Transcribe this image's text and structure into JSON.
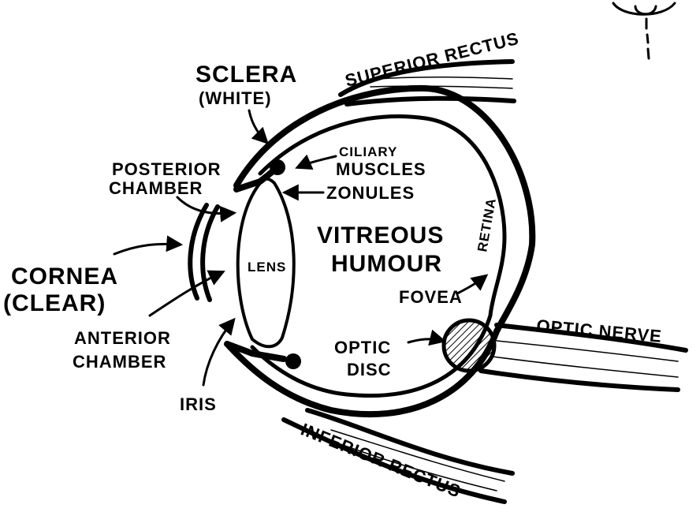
{
  "colors": {
    "ink": "#000000",
    "paper": "#ffffff"
  },
  "labels": {
    "sclera": "SCLERA",
    "sclera_note": "(WHITE)",
    "superior_rectus": "SUPERIOR RECTUS",
    "posterior_chamber_1": "POSTERIOR",
    "posterior_chamber_2": "CHAMBER",
    "ciliary_1": "CILIARY",
    "ciliary_2": "MUSCLES",
    "zonules": "ZONULES",
    "vitreous_1": "VITREOUS",
    "vitreous_2": "HUMOUR",
    "retina": "RETINA",
    "lens": "LENS",
    "cornea": "CORNEA",
    "cornea_note": "(CLEAR)",
    "fovea": "FOVEA",
    "optic_nerve": "OPTIC NERVE",
    "anterior_chamber_1": "ANTERIOR",
    "anterior_chamber_2": "CHAMBER",
    "optic_disc_1": "OPTIC",
    "optic_disc_2": "DISC",
    "iris": "IRIS",
    "inferior_rectus": "INFERIOR RECTUS"
  }
}
